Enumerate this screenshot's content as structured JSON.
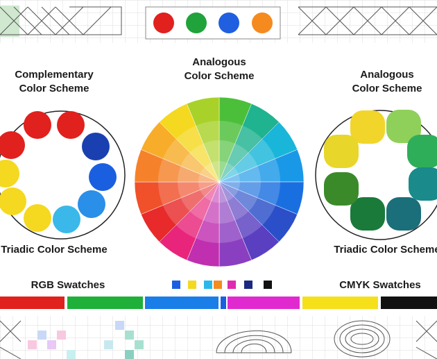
{
  "left_title": {
    "lines": [
      "Complementary",
      "Color Scheme"
    ]
  },
  "center_title": {
    "lines": [
      "Analogous",
      "Color Scheme"
    ]
  },
  "right_title": {
    "lines": [
      "Analogous",
      "Color Scheme"
    ]
  },
  "left_caption": "Triadic Color Scheme",
  "right_caption": "Triadic Color Scheme",
  "rgb_label": "RGB Swatches",
  "cmyk_label": "CMYK Swatches"
}
